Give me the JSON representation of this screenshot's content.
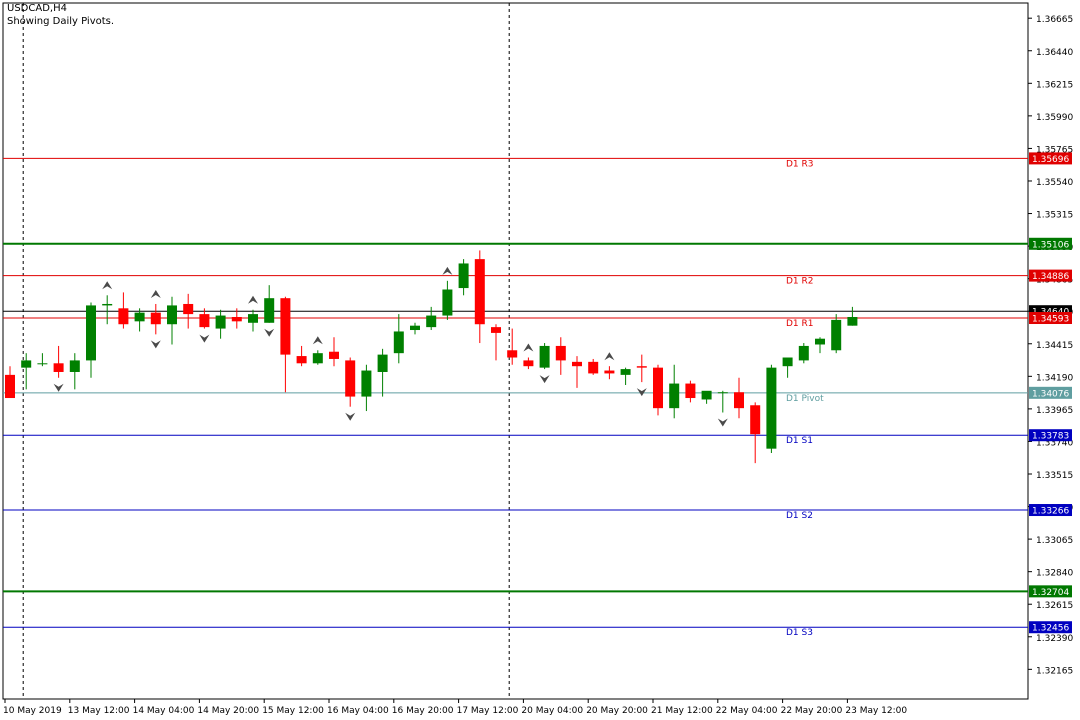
{
  "header": {
    "symbol": "USDCAD,H4",
    "subtitle": "Showing Daily Pivots."
  },
  "chart_data": {
    "type": "candlestick",
    "symbol": "USDCAD",
    "timeframe": "H4",
    "ylim": [
      1.3196,
      1.3677
    ],
    "y_ticks": [
      "1.36665",
      "1.36440",
      "1.36215",
      "1.35990",
      "1.35765",
      "1.35540",
      "1.35315",
      "1.35090",
      "1.34865",
      "1.34640",
      "1.34415",
      "1.34190",
      "1.33965",
      "1.33740",
      "1.33515",
      "1.33290",
      "1.33065",
      "1.32840",
      "1.32615",
      "1.32390",
      "1.32165"
    ],
    "x_labels": [
      "10 May 2019",
      "13 May 12:00",
      "14 May 04:00",
      "14 May 20:00",
      "15 May 12:00",
      "16 May 04:00",
      "16 May 20:00",
      "17 May 12:00",
      "20 May 04:00",
      "20 May 20:00",
      "21 May 12:00",
      "22 May 04:00",
      "22 May 20:00",
      "23 May 12:00"
    ],
    "x_label_candle_index": [
      0,
      4,
      8,
      12,
      16,
      20,
      24,
      28,
      32,
      36,
      40,
      44,
      48,
      52
    ],
    "vertical_separators_candle_index": [
      1,
      31
    ],
    "candles": [
      [
        1.342,
        1.3426,
        1.3404,
        1.3404
      ],
      [
        1.3425,
        1.3435,
        1.341,
        1.343
      ],
      [
        1.3428,
        1.3435,
        1.3426,
        1.3428
      ],
      [
        1.3428,
        1.344,
        1.3418,
        1.3422
      ],
      [
        1.3422,
        1.3435,
        1.341,
        1.343
      ],
      [
        1.343,
        1.347,
        1.3418,
        1.3468
      ],
      [
        1.3468,
        1.3475,
        1.3455,
        1.3469
      ],
      [
        1.3466,
        1.3477,
        1.3452,
        1.3455
      ],
      [
        1.3457,
        1.3466,
        1.345,
        1.3463
      ],
      [
        1.3463,
        1.3469,
        1.3448,
        1.3455
      ],
      [
        1.3455,
        1.3474,
        1.3441,
        1.3468
      ],
      [
        1.3469,
        1.3476,
        1.3452,
        1.3462
      ],
      [
        1.3462,
        1.3466,
        1.3452,
        1.3453
      ],
      [
        1.3452,
        1.3465,
        1.3445,
        1.3461
      ],
      [
        1.346,
        1.3466,
        1.3452,
        1.3457
      ],
      [
        1.3456,
        1.3465,
        1.345,
        1.3462
      ],
      [
        1.3456,
        1.3482,
        1.3456,
        1.3473
      ],
      [
        1.3473,
        1.3474,
        1.3408,
        1.3434
      ],
      [
        1.3433,
        1.344,
        1.3426,
        1.3428
      ],
      [
        1.3428,
        1.3437,
        1.3427,
        1.3435
      ],
      [
        1.3436,
        1.3446,
        1.3426,
        1.3431
      ],
      [
        1.343,
        1.3432,
        1.3398,
        1.3405
      ],
      [
        1.3405,
        1.3427,
        1.3395,
        1.3423
      ],
      [
        1.3422,
        1.3438,
        1.3405,
        1.3434
      ],
      [
        1.3435,
        1.3462,
        1.3428,
        1.345
      ],
      [
        1.3451,
        1.3456,
        1.3448,
        1.3454
      ],
      [
        1.3453,
        1.3467,
        1.3451,
        1.3461
      ],
      [
        1.3461,
        1.3485,
        1.3458,
        1.3479
      ],
      [
        1.348,
        1.35,
        1.3475,
        1.3497
      ],
      [
        1.35,
        1.3506,
        1.3442,
        1.3455
      ],
      [
        1.3453,
        1.3455,
        1.343,
        1.3449
      ],
      [
        1.3437,
        1.3452,
        1.3427,
        1.3432
      ],
      [
        1.343,
        1.3432,
        1.3424,
        1.3426
      ],
      [
        1.3425,
        1.3442,
        1.3424,
        1.344
      ],
      [
        1.344,
        1.3446,
        1.342,
        1.343
      ],
      [
        1.3429,
        1.3433,
        1.3411,
        1.3426
      ],
      [
        1.3429,
        1.3431,
        1.342,
        1.3421
      ],
      [
        1.3423,
        1.3426,
        1.3417,
        1.3421
      ],
      [
        1.342,
        1.3425,
        1.3413,
        1.3424
      ],
      [
        1.3426,
        1.3434,
        1.3415,
        1.3425
      ],
      [
        1.3425,
        1.3427,
        1.3392,
        1.3397
      ],
      [
        1.3397,
        1.3427,
        1.339,
        1.3414
      ],
      [
        1.3414,
        1.3416,
        1.3401,
        1.3404
      ],
      [
        1.3403,
        1.3408,
        1.34,
        1.3409
      ],
      [
        1.3408,
        1.3409,
        1.3394,
        1.3408
      ],
      [
        1.3408,
        1.3418,
        1.339,
        1.3397
      ],
      [
        1.3399,
        1.3401,
        1.3359,
        1.3379
      ],
      [
        1.3369,
        1.3427,
        1.3366,
        1.3425
      ],
      [
        1.3426,
        1.3429,
        1.3418,
        1.3432
      ],
      [
        1.343,
        1.3442,
        1.3428,
        1.344
      ],
      [
        1.3441,
        1.3446,
        1.3435,
        1.3445
      ],
      [
        1.3437,
        1.3462,
        1.3435,
        1.3458
      ],
      [
        1.3454,
        1.3467,
        1.3454,
        1.346
      ]
    ],
    "fractals_up": [
      6,
      9,
      15,
      27,
      19,
      32,
      37
    ],
    "fractals_down": [
      3,
      9,
      12,
      16,
      21,
      33,
      39,
      44
    ],
    "horizontal_lines": [
      {
        "label": "D1 R3",
        "value": 1.35696,
        "price_label": "1.35696",
        "color": "#e00000"
      },
      {
        "label": "",
        "value": 1.35106,
        "price_label": "1.35106",
        "color": "#007800"
      },
      {
        "label": "D1 R2",
        "value": 1.34886,
        "price_label": "1.34886",
        "color": "#e00000"
      },
      {
        "label": "",
        "value": 1.3464,
        "price_label": "1.34640",
        "color": "#000000"
      },
      {
        "label": "D1 R1",
        "value": 1.34593,
        "price_label": "1.34593",
        "color": "#e00000"
      },
      {
        "label": "D1 Pivot",
        "value": 1.34076,
        "price_label": "1.34076",
        "color": "#5f9ea0"
      },
      {
        "label": "D1 S1",
        "value": 1.33783,
        "price_label": "1.33783",
        "color": "#0000c0"
      },
      {
        "label": "D1 S2",
        "value": 1.33266,
        "price_label": "1.33266",
        "color": "#0000c0"
      },
      {
        "label": "",
        "value": 1.32704,
        "price_label": "1.32704",
        "color": "#007800"
      },
      {
        "label": "D1 S3",
        "value": 1.32456,
        "price_label": "1.32456",
        "color": "#0000c0"
      }
    ],
    "colors": {
      "bull": "#008000",
      "bear": "#ff0000",
      "grid_separator": "#000000",
      "axis": "#000000"
    }
  }
}
